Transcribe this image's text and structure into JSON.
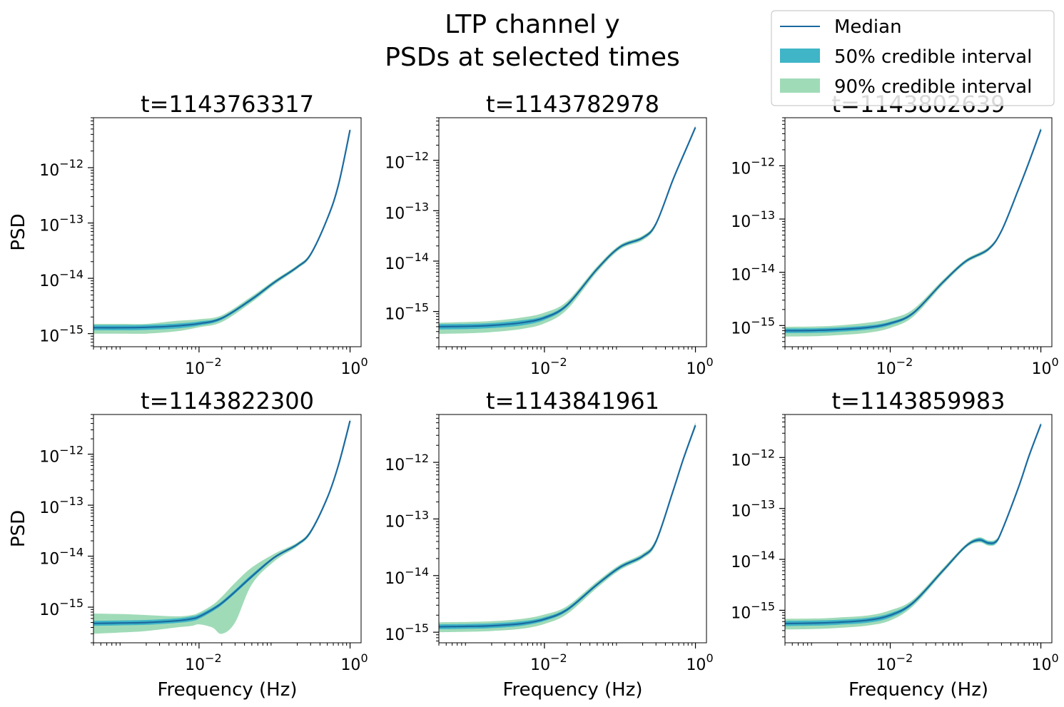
{
  "figure": {
    "title_line1": "LTP channel y",
    "title_line2": "PSDs at selected times"
  },
  "legend": {
    "placement": "top-right",
    "items": [
      {
        "label": "Median",
        "kind": "line",
        "color": "#1a6aa0"
      },
      {
        "label": "50% credible interval",
        "kind": "patch",
        "color": "#3fb5c7"
      },
      {
        "label": "90% credible interval",
        "kind": "patch",
        "color": "#a0dbb8"
      }
    ]
  },
  "colors": {
    "median": "#1a6aa0",
    "ci50": "#3fb5c7",
    "ci90": "#a0dbb8"
  },
  "chart_data": [
    {
      "type": "line",
      "title": "t=1143763317",
      "xlabel": "",
      "ylabel": "PSD",
      "xscale": "log",
      "yscale": "log",
      "xlim": [
        0.0004,
        1.4
      ],
      "ylim": [
        5.8e-16,
        8e-12
      ],
      "xticks": [
        {
          "value": 0.01,
          "base": "10",
          "exp": "−2"
        },
        {
          "value": 1,
          "base": "10",
          "exp": "0"
        }
      ],
      "yticks": [
        {
          "value": 1e-15,
          "base": "10",
          "exp": "−15"
        },
        {
          "value": 1e-14,
          "base": "10",
          "exp": "−14"
        },
        {
          "value": 1e-13,
          "base": "10",
          "exp": "−13"
        },
        {
          "value": 1e-12,
          "base": "10",
          "exp": "−12"
        }
      ],
      "x": [
        0.0004,
        0.001,
        0.002,
        0.005,
        0.01,
        0.02,
        0.05,
        0.1,
        0.2,
        0.3,
        0.5,
        0.7,
        1.0
      ],
      "median": [
        1.28e-15,
        1.28e-15,
        1.3e-15,
        1.38e-15,
        1.52e-15,
        1.9e-15,
        4.2e-15,
        8.5e-15,
        1.6e-14,
        2.7e-14,
        1.2e-13,
        4.8e-13,
        4.8e-12
      ],
      "ci50": [
        [
          1.15e-15,
          1.42e-15
        ],
        [
          1.15e-15,
          1.42e-15
        ],
        [
          1.17e-15,
          1.44e-15
        ],
        [
          1.24e-15,
          1.52e-15
        ],
        [
          1.4e-15,
          1.66e-15
        ],
        [
          1.78e-15,
          2e-15
        ],
        [
          3.95e-15,
          4.45e-15
        ],
        [
          8.1e-15,
          8.9e-15
        ],
        [
          1.53e-14,
          1.67e-14
        ],
        [
          2.6e-14,
          2.8e-14
        ],
        [
          1.16e-13,
          1.24e-13
        ],
        [
          4.7e-13,
          4.9e-13
        ],
        [
          4.6e-12,
          5e-12
        ]
      ],
      "ci90": [
        [
          1e-15,
          1.5e-15
        ],
        [
          1e-15,
          1.5e-15
        ],
        [
          1e-15,
          1.5e-15
        ],
        [
          1.1e-15,
          1.7e-15
        ],
        [
          1.3e-15,
          1.82e-15
        ],
        [
          1.62e-15,
          2.15e-15
        ],
        [
          3.7e-15,
          4.75e-15
        ],
        [
          7.7e-15,
          9.3e-15
        ],
        [
          1.48e-14,
          1.72e-14
        ],
        [
          2.5e-14,
          2.9e-14
        ],
        [
          1.13e-13,
          1.28e-13
        ],
        [
          4.6e-13,
          5e-13
        ],
        [
          4.5e-12,
          5.2e-12
        ]
      ]
    },
    {
      "type": "line",
      "title": "t=1143782978",
      "xlabel": "",
      "ylabel": "",
      "xscale": "log",
      "yscale": "log",
      "xlim": [
        0.0004,
        1.4
      ],
      "ylim": [
        2e-16,
        7e-12
      ],
      "xticks": [
        {
          "value": 0.01,
          "base": "10",
          "exp": "−2"
        },
        {
          "value": 1,
          "base": "10",
          "exp": "0"
        }
      ],
      "yticks": [
        {
          "value": 1e-15,
          "base": "10",
          "exp": "−15"
        },
        {
          "value": 1e-14,
          "base": "10",
          "exp": "−14"
        },
        {
          "value": 1e-13,
          "base": "10",
          "exp": "−13"
        },
        {
          "value": 1e-12,
          "base": "10",
          "exp": "−12"
        }
      ],
      "x": [
        0.0004,
        0.001,
        0.002,
        0.005,
        0.01,
        0.02,
        0.05,
        0.1,
        0.2,
        0.3,
        0.5,
        0.7,
        1.0
      ],
      "median": [
        5e-16,
        5.1e-16,
        5.3e-16,
        6e-16,
        7.5e-16,
        1.35e-15,
        7e-15,
        1.9e-14,
        2.9e-14,
        5.5e-14,
        4e-13,
        1.3e-12,
        4.5e-12
      ],
      "ci50": [
        [
          4.4e-16,
          5.6e-16
        ],
        [
          4.5e-16,
          5.7e-16
        ],
        [
          4.7e-16,
          5.9e-16
        ],
        [
          5.3e-16,
          6.7e-16
        ],
        [
          6.8e-16,
          8.2e-16
        ],
        [
          1.25e-15,
          1.45e-15
        ],
        [
          6.6e-15,
          7.4e-15
        ],
        [
          1.8e-14,
          2e-14
        ],
        [
          2.75e-14,
          3.05e-14
        ],
        [
          5.2e-14,
          5.8e-14
        ],
        [
          3.85e-13,
          4.15e-13
        ],
        [
          1.26e-12,
          1.34e-12
        ],
        [
          4.3e-12,
          4.7e-12
        ]
      ],
      "ci90": [
        [
          3.6e-16,
          6e-16
        ],
        [
          3.7e-16,
          6.2e-16
        ],
        [
          3.9e-16,
          6.5e-16
        ],
        [
          4.5e-16,
          7.6e-16
        ],
        [
          5.8e-16,
          9.5e-16
        ],
        [
          1.1e-15,
          1.6e-15
        ],
        [
          6.1e-15,
          7.9e-15
        ],
        [
          1.7e-14,
          2.1e-14
        ],
        [
          2.6e-14,
          3.2e-14
        ],
        [
          5e-14,
          6e-14
        ],
        [
          3.75e-13,
          4.25e-13
        ],
        [
          1.23e-12,
          1.37e-12
        ],
        [
          4.2e-12,
          4.9e-12
        ]
      ]
    },
    {
      "type": "line",
      "title": "t=1143802639",
      "xlabel": "",
      "ylabel": "",
      "xscale": "log",
      "yscale": "log",
      "xlim": [
        0.0004,
        1.4
      ],
      "ylim": [
        4e-16,
        8e-12
      ],
      "xticks": [
        {
          "value": 0.01,
          "base": "10",
          "exp": "−2"
        },
        {
          "value": 1,
          "base": "10",
          "exp": "0"
        }
      ],
      "yticks": [
        {
          "value": 1e-15,
          "base": "10",
          "exp": "−15"
        },
        {
          "value": 1e-14,
          "base": "10",
          "exp": "−14"
        },
        {
          "value": 1e-13,
          "base": "10",
          "exp": "−13"
        },
        {
          "value": 1e-12,
          "base": "10",
          "exp": "−12"
        }
      ],
      "x": [
        0.0004,
        0.001,
        0.002,
        0.005,
        0.01,
        0.02,
        0.05,
        0.1,
        0.2,
        0.3,
        0.5,
        0.7,
        1.0
      ],
      "median": [
        8e-16,
        8.1e-16,
        8.4e-16,
        9.2e-16,
        1.1e-15,
        1.7e-15,
        6.5e-15,
        1.6e-14,
        2.7e-14,
        6e-14,
        3.5e-13,
        1.2e-12,
        4.8e-12
      ],
      "ci50": [
        [
          7.2e-16,
          8.8e-16
        ],
        [
          7.3e-16,
          8.9e-16
        ],
        [
          7.6e-16,
          9.2e-16
        ],
        [
          8.4e-16,
          1e-15
        ],
        [
          1.02e-15,
          1.18e-15
        ],
        [
          1.6e-15,
          1.8e-15
        ],
        [
          6.2e-15,
          6.8e-15
        ],
        [
          1.53e-14,
          1.67e-14
        ],
        [
          2.6e-14,
          2.8e-14
        ],
        [
          5.8e-14,
          6.2e-14
        ],
        [
          3.4e-13,
          3.6e-13
        ],
        [
          1.17e-12,
          1.23e-12
        ],
        [
          4.6e-12,
          5e-12
        ]
      ],
      "ci90": [
        [
          6.2e-16,
          9.5e-16
        ],
        [
          6.3e-16,
          9.6e-16
        ],
        [
          6.6e-16,
          1e-15
        ],
        [
          7.3e-16,
          1.13e-15
        ],
        [
          9e-16,
          1.35e-15
        ],
        [
          1.45e-15,
          2e-15
        ],
        [
          5.8e-15,
          7.2e-15
        ],
        [
          1.46e-14,
          1.74e-14
        ],
        [
          2.5e-14,
          2.95e-14
        ],
        [
          5.6e-14,
          6.4e-14
        ],
        [
          3.3e-13,
          3.7e-13
        ],
        [
          1.15e-12,
          1.25e-12
        ],
        [
          4.5e-12,
          5.3e-12
        ]
      ]
    },
    {
      "type": "line",
      "title": "t=1143822300",
      "xlabel": "Frequency (Hz)",
      "ylabel": "PSD",
      "xscale": "log",
      "yscale": "log",
      "xlim": [
        0.0004,
        1.4
      ],
      "ylim": [
        2e-16,
        6e-12
      ],
      "xticks": [
        {
          "value": 0.01,
          "base": "10",
          "exp": "−2"
        },
        {
          "value": 1,
          "base": "10",
          "exp": "0"
        }
      ],
      "yticks": [
        {
          "value": 1e-15,
          "base": "10",
          "exp": "−15"
        },
        {
          "value": 1e-14,
          "base": "10",
          "exp": "−14"
        },
        {
          "value": 1e-13,
          "base": "10",
          "exp": "−13"
        },
        {
          "value": 1e-12,
          "base": "10",
          "exp": "−12"
        }
      ],
      "x": [
        0.0004,
        0.001,
        0.002,
        0.005,
        0.008,
        0.01,
        0.015,
        0.02,
        0.03,
        0.05,
        0.1,
        0.2,
        0.3,
        0.5,
        0.7,
        1.0
      ],
      "median": [
        4.8e-16,
        4.9e-16,
        5e-16,
        5.4e-16,
        5.9e-16,
        6.5e-16,
        9e-16,
        1.2e-15,
        2e-15,
        4e-15,
        9.5e-15,
        1.7e-14,
        3e-14,
        1.4e-13,
        6e-13,
        4.5e-12
      ],
      "ci50": [
        [
          4.3e-16,
          5.4e-16
        ],
        [
          4.4e-16,
          5.5e-16
        ],
        [
          4.5e-16,
          5.6e-16
        ],
        [
          4.9e-16,
          6e-16
        ],
        [
          5.3e-16,
          6.6e-16
        ],
        [
          5.9e-16,
          7.2e-16
        ],
        [
          8.2e-16,
          9.8e-16
        ],
        [
          1.1e-15,
          1.3e-15
        ],
        [
          1.85e-15,
          2.2e-15
        ],
        [
          3.7e-15,
          4.4e-15
        ],
        [
          9e-15,
          1e-14
        ],
        [
          1.62e-14,
          1.78e-14
        ],
        [
          2.85e-14,
          3.15e-14
        ],
        [
          1.35e-13,
          1.45e-13
        ],
        [
          5.8e-13,
          6.2e-13
        ],
        [
          4.3e-12,
          4.8e-12
        ]
      ],
      "ci90": [
        [
          3e-16,
          7.5e-16
        ],
        [
          3.2e-16,
          7.3e-16
        ],
        [
          3.4e-16,
          7e-16
        ],
        [
          4e-16,
          6.6e-16
        ],
        [
          4.3e-16,
          7e-16
        ],
        [
          4.6e-16,
          7.8e-16
        ],
        [
          4e-16,
          1.1e-15
        ],
        [
          3e-16,
          1.6e-15
        ],
        [
          5e-16,
          3e-15
        ],
        [
          2.8e-15,
          6e-15
        ],
        [
          8e-15,
          1.12e-14
        ],
        [
          1.55e-14,
          1.85e-14
        ],
        [
          2.75e-14,
          3.25e-14
        ],
        [
          1.3e-13,
          1.5e-13
        ],
        [
          5.6e-13,
          6.4e-13
        ],
        [
          4.2e-12,
          5e-12
        ]
      ]
    },
    {
      "type": "line",
      "title": "t=1143841961",
      "xlabel": "Frequency (Hz)",
      "ylabel": "",
      "xscale": "log",
      "yscale": "log",
      "xlim": [
        0.0004,
        1.4
      ],
      "ylim": [
        6.5e-16,
        7e-12
      ],
      "xticks": [
        {
          "value": 0.01,
          "base": "10",
          "exp": "−2"
        },
        {
          "value": 1,
          "base": "10",
          "exp": "0"
        }
      ],
      "yticks": [
        {
          "value": 1e-15,
          "base": "10",
          "exp": "−15"
        },
        {
          "value": 1e-14,
          "base": "10",
          "exp": "−14"
        },
        {
          "value": 1e-13,
          "base": "10",
          "exp": "−13"
        },
        {
          "value": 1e-12,
          "base": "10",
          "exp": "−12"
        }
      ],
      "x": [
        0.0004,
        0.001,
        0.002,
        0.005,
        0.01,
        0.02,
        0.05,
        0.1,
        0.2,
        0.3,
        0.5,
        0.7,
        1.0
      ],
      "median": [
        1.25e-15,
        1.27e-15,
        1.3e-15,
        1.42e-15,
        1.7e-15,
        2.5e-15,
        7e-15,
        1.4e-14,
        2.2e-14,
        4e-14,
        3e-13,
        1.2e-12,
        4.5e-12
      ],
      "ci50": [
        [
          1.13e-15,
          1.38e-15
        ],
        [
          1.15e-15,
          1.4e-15
        ],
        [
          1.18e-15,
          1.43e-15
        ],
        [
          1.3e-15,
          1.56e-15
        ],
        [
          1.58e-15,
          1.84e-15
        ],
        [
          2.35e-15,
          2.68e-15
        ],
        [
          6.6e-15,
          7.4e-15
        ],
        [
          1.32e-14,
          1.48e-14
        ],
        [
          2.1e-14,
          2.32e-14
        ],
        [
          3.8e-14,
          4.2e-14
        ],
        [
          2.9e-13,
          3.1e-13
        ],
        [
          1.16e-12,
          1.24e-12
        ],
        [
          4.3e-12,
          4.8e-12
        ]
      ],
      "ci90": [
        [
          1e-15,
          1.5e-15
        ],
        [
          1.02e-15,
          1.52e-15
        ],
        [
          1.05e-15,
          1.56e-15
        ],
        [
          1.15e-15,
          1.72e-15
        ],
        [
          1.4e-15,
          2.05e-15
        ],
        [
          2.1e-15,
          2.9e-15
        ],
        [
          6.1e-15,
          7.9e-15
        ],
        [
          1.25e-14,
          1.56e-14
        ],
        [
          2e-14,
          2.45e-14
        ],
        [
          3.6e-14,
          4.4e-14
        ],
        [
          2.8e-13,
          3.2e-13
        ],
        [
          1.12e-12,
          1.28e-12
        ],
        [
          4.2e-12,
          5.1e-12
        ]
      ]
    },
    {
      "type": "line",
      "title": "t=1143859983",
      "xlabel": "Frequency (Hz)",
      "ylabel": "",
      "xscale": "log",
      "yscale": "log",
      "xlim": [
        0.0004,
        1.4
      ],
      "ylim": [
        2.3e-16,
        7e-12
      ],
      "xticks": [
        {
          "value": 0.01,
          "base": "10",
          "exp": "−2"
        },
        {
          "value": 1,
          "base": "10",
          "exp": "0"
        }
      ],
      "yticks": [
        {
          "value": 1e-15,
          "base": "10",
          "exp": "−15"
        },
        {
          "value": 1e-14,
          "base": "10",
          "exp": "−14"
        },
        {
          "value": 1e-13,
          "base": "10",
          "exp": "−13"
        },
        {
          "value": 1e-12,
          "base": "10",
          "exp": "−12"
        }
      ],
      "x": [
        0.0004,
        0.001,
        0.002,
        0.005,
        0.01,
        0.02,
        0.05,
        0.1,
        0.15,
        0.2,
        0.25,
        0.3,
        0.5,
        0.7,
        1.0
      ],
      "median": [
        5.5e-16,
        5.6e-16,
        5.8e-16,
        6.4e-16,
        8e-16,
        1.4e-15,
        6e-15,
        1.8e-14,
        2.4e-14,
        2.1e-14,
        2.2e-14,
        3.5e-14,
        2.5e-13,
        1.1e-12,
        4.5e-12
      ],
      "ci50": [
        [
          4.9e-16,
          6.2e-16
        ],
        [
          5e-16,
          6.3e-16
        ],
        [
          5.2e-16,
          6.5e-16
        ],
        [
          5.7e-16,
          7.1e-16
        ],
        [
          7.2e-16,
          8.8e-16
        ],
        [
          1.3e-15,
          1.5e-15
        ],
        [
          5.7e-15,
          6.3e-15
        ],
        [
          1.72e-14,
          1.88e-14
        ],
        [
          2.25e-14,
          2.6e-14
        ],
        [
          1.95e-14,
          2.25e-14
        ],
        [
          2.05e-14,
          2.35e-14
        ],
        [
          3.35e-14,
          3.65e-14
        ],
        [
          2.42e-13,
          2.58e-13
        ],
        [
          1.07e-12,
          1.13e-12
        ],
        [
          4.3e-12,
          4.7e-12
        ]
      ],
      "ci90": [
        [
          4.2e-16,
          6.8e-16
        ],
        [
          4.3e-16,
          6.9e-16
        ],
        [
          4.5e-16,
          7.2e-16
        ],
        [
          5e-16,
          7.9e-16
        ],
        [
          6.3e-16,
          1e-15
        ],
        [
          1.2e-15,
          1.62e-15
        ],
        [
          5.4e-15,
          6.7e-15
        ],
        [
          1.65e-14,
          1.96e-14
        ],
        [
          2.15e-14,
          2.7e-14
        ],
        [
          1.87e-14,
          2.35e-14
        ],
        [
          1.97e-14,
          2.45e-14
        ],
        [
          3.25e-14,
          3.75e-14
        ],
        [
          2.38e-13,
          2.62e-13
        ],
        [
          1.05e-12,
          1.16e-12
        ],
        [
          4.2e-12,
          4.9e-12
        ]
      ]
    }
  ]
}
